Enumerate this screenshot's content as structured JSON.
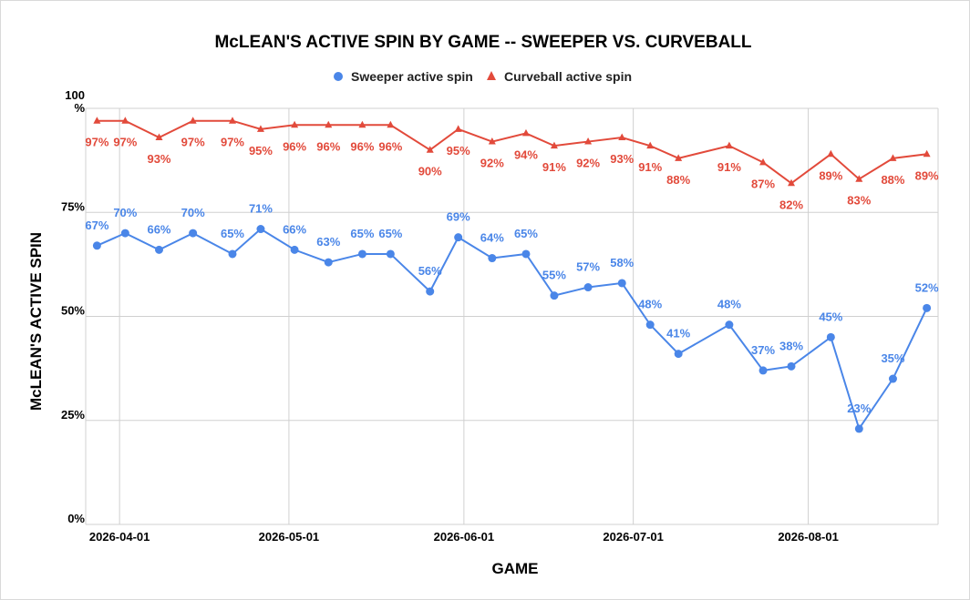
{
  "chart_data": {
    "type": "line",
    "title": "McLEAN'S ACTIVE SPIN BY GAME -- SWEEPER VS. CURVEBALL",
    "xlabel": "GAME",
    "ylabel": "McLEAN'S ACTIVE SPIN",
    "ylim": [
      0,
      100
    ],
    "xlim": [
      "2026-03-26",
      "2026-08-24"
    ],
    "y_ticks": [
      {
        "value": 0,
        "label": "0%"
      },
      {
        "value": 25,
        "label": "25%"
      },
      {
        "value": 50,
        "label": "50%"
      },
      {
        "value": 75,
        "label": "75%"
      },
      {
        "value": 100,
        "label": "100\n%"
      }
    ],
    "x_ticks": [
      "2026-04-01",
      "2026-05-01",
      "2026-06-01",
      "2026-07-01",
      "2026-08-01"
    ],
    "grid": true,
    "legend_position": "top",
    "x": [
      "2026-03-28",
      "2026-04-02",
      "2026-04-08",
      "2026-04-14",
      "2026-04-21",
      "2026-04-26",
      "2026-05-02",
      "2026-05-08",
      "2026-05-14",
      "2026-05-19",
      "2026-05-26",
      "2026-05-31",
      "2026-06-06",
      "2026-06-12",
      "2026-06-17",
      "2026-06-23",
      "2026-06-29",
      "2026-07-04",
      "2026-07-09",
      "2026-07-18",
      "2026-07-24",
      "2026-07-29",
      "2026-08-05",
      "2026-08-10",
      "2026-08-16",
      "2026-08-22"
    ],
    "series": [
      {
        "name": "Sweeper active spin",
        "color": "#4a86e8",
        "marker": "circle",
        "values": [
          67,
          70,
          66,
          70,
          65,
          71,
          66,
          63,
          65,
          65,
          56,
          69,
          64,
          65,
          55,
          57,
          58,
          48,
          41,
          48,
          37,
          38,
          45,
          23,
          35,
          52
        ],
        "labels": [
          "67%",
          "70%",
          "66%",
          "70%",
          "65%",
          "71%",
          "66%",
          "63%",
          "65%",
          "65%",
          "56%",
          "69%",
          "64%",
          "65%",
          "55%",
          "57%",
          "58%",
          "48%",
          "41%",
          "48%",
          "37%",
          "38%",
          "45%",
          "23%",
          "35%",
          "52%"
        ]
      },
      {
        "name": "Curveball active spin",
        "color": "#e24a3b",
        "marker": "triangle",
        "values": [
          97,
          97,
          93,
          97,
          97,
          95,
          96,
          96,
          96,
          96,
          90,
          95,
          92,
          94,
          91,
          92,
          93,
          91,
          88,
          91,
          87,
          82,
          89,
          83,
          88,
          89
        ],
        "labels": [
          "97%",
          "97%",
          "93%",
          "97%",
          "97%",
          "95%",
          "96%",
          "96%",
          "96%",
          "96%",
          "90%",
          "95%",
          "92%",
          "94%",
          "91%",
          "92%",
          "93%",
          "91%",
          "88%",
          "91%",
          "87%",
          "82%",
          "89%",
          "83%",
          "88%",
          "89%"
        ]
      }
    ]
  }
}
